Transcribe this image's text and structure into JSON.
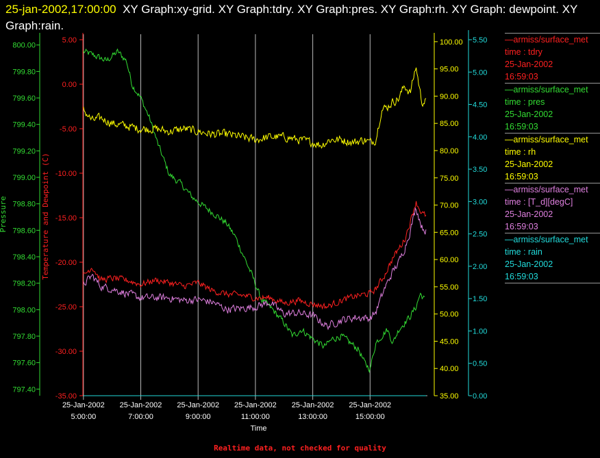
{
  "title": {
    "timestamp": "25-jan-2002,17:00:00",
    "text": "XY Graph:xy-grid.  XY Graph:tdry.  XY Graph:pres.  XY Graph:rh.  XY Graph: dewpoint.  XY Graph:rain."
  },
  "footer": "Realtime data, not checked for quality",
  "colors": {
    "tdry": "#ff2020",
    "pres": "#33dd33",
    "rh": "#ffff00",
    "dewpoint": "#e080e0",
    "rain": "#22dddd",
    "grid": "#bbbbbb"
  },
  "legend": [
    {
      "source": "—armiss/surface_met",
      "label": "time : tdry",
      "date": "25-Jan-2002",
      "time": "16:59:03",
      "color": "#ff2020"
    },
    {
      "source": "—armiss/surface_met",
      "label": "time : pres",
      "date": "25-Jan-2002",
      "time": "16:59:03",
      "color": "#33dd33"
    },
    {
      "source": "—armiss/surface_met",
      "label": "time : rh",
      "date": "25-Jan-2002",
      "time": "16:59:03",
      "color": "#ffff00"
    },
    {
      "source": "—armiss/surface_met",
      "label": "time : [T_d][degC]",
      "date": "25-Jan-2002",
      "time": "16:59:03",
      "color": "#e080e0"
    },
    {
      "source": "—armiss/surface_met",
      "label": "time : rain",
      "date": "25-Jan-2002",
      "time": "16:59:03",
      "color": "#22dddd"
    }
  ],
  "chart_data": {
    "type": "line",
    "title": "",
    "xlabel": "Time",
    "grid": true,
    "legend_placement": "right",
    "x_ticks": [
      {
        "date": "25-Jan-2002",
        "time": "5:00:00",
        "hour": 5
      },
      {
        "date": "25-Jan-2002",
        "time": "7:00:00",
        "hour": 7
      },
      {
        "date": "25-Jan-2002",
        "time": "9:00:00",
        "hour": 9
      },
      {
        "date": "25-Jan-2002",
        "time": "11:00:00",
        "hour": 11
      },
      {
        "date": "25-Jan-2002",
        "time": "13:00:00",
        "hour": 13
      },
      {
        "date": "25-Jan-2002",
        "time": "15:00:00",
        "hour": 15
      }
    ],
    "xlim": [
      4.98,
      17.0
    ],
    "axes": {
      "temperature": {
        "label": "Temperature and Dewpoint (C)",
        "ylim": [
          -35,
          5
        ],
        "ticks": [
          "5.00",
          "0.00",
          "-5.00",
          "-10.00",
          "-15.00",
          "-20.00",
          "-25.00",
          "-30.00",
          "-35.00"
        ],
        "tick_values": [
          5,
          0,
          -5,
          -10,
          -15,
          -20,
          -25,
          -30,
          -35
        ],
        "color": "#ff2020"
      },
      "pressure": {
        "label": "Pressure",
        "ylim": [
          797.35,
          800.04
        ],
        "ticks": [
          "800.00",
          "799.80",
          "799.60",
          "799.40",
          "799.20",
          "799.00",
          "798.80",
          "798.60",
          "798.40",
          "798.20",
          "798.00",
          "797.80",
          "797.60",
          "797.40"
        ],
        "tick_values": [
          800,
          799.8,
          799.6,
          799.4,
          799.2,
          799,
          798.8,
          798.6,
          798.4,
          798.2,
          798,
          797.8,
          797.6,
          797.4
        ],
        "color": "#33dd33"
      },
      "rh": {
        "label": "",
        "ylim": [
          35,
          100.36
        ],
        "ticks": [
          "100.00",
          "95.00",
          "90.00",
          "85.00",
          "80.00",
          "75.00",
          "70.00",
          "65.00",
          "60.00",
          "55.00",
          "50.00",
          "45.00",
          "40.00",
          "35.00"
        ],
        "tick_values": [
          100,
          95,
          90,
          85,
          80,
          75,
          70,
          65,
          60,
          55,
          50,
          45,
          40,
          35
        ],
        "color": "#ffff00"
      },
      "rain": {
        "label": "",
        "ylim": [
          0,
          5.5
        ],
        "ticks": [
          "5.50",
          "5.00",
          "4.50",
          "4.00",
          "3.50",
          "3.00",
          "2.50",
          "2.00",
          "1.50",
          "1.00",
          "0.50",
          "0.00"
        ],
        "tick_values": [
          5.5,
          5,
          4.5,
          4,
          3.5,
          3,
          2.5,
          2,
          1.5,
          1,
          0.5,
          0
        ],
        "color": "#22dddd"
      }
    },
    "series": [
      {
        "key": "tdry",
        "axis": "temperature",
        "color": "#ff2020",
        "noise": 0.5,
        "x": [
          5.0,
          5.3,
          5.6,
          6.0,
          6.5,
          7.0,
          7.5,
          8.0,
          8.5,
          9.0,
          9.5,
          10.0,
          10.5,
          11.0,
          11.5,
          12.0,
          12.5,
          13.0,
          13.5,
          14.0,
          14.5,
          15.0,
          15.2,
          15.5,
          15.8,
          16.0,
          16.2,
          16.4,
          16.6,
          16.8,
          16.95
        ],
        "y": [
          -21.5,
          -20.5,
          -22,
          -21.8,
          -22,
          -22.5,
          -22,
          -22.3,
          -22.7,
          -22.3,
          -23.2,
          -23.6,
          -23.7,
          -24,
          -24,
          -24.6,
          -24.3,
          -24.7,
          -25,
          -24.3,
          -23.8,
          -23.5,
          -23,
          -21.5,
          -19.5,
          -18.5,
          -17.5,
          -15.5,
          -13.2,
          -14.5,
          -14.8
        ]
      },
      {
        "key": "dewpoint",
        "axis": "temperature",
        "color": "#e080e0",
        "noise": 0.6,
        "x": [
          5.0,
          5.3,
          5.6,
          6.0,
          6.5,
          7.0,
          7.5,
          8.0,
          8.5,
          9.0,
          9.5,
          10.0,
          10.5,
          11.0,
          11.5,
          12.0,
          12.5,
          13.0,
          13.5,
          14.0,
          14.5,
          15.0,
          15.2,
          15.5,
          15.8,
          16.0,
          16.2,
          16.4,
          16.6,
          16.8,
          16.95
        ],
        "y": [
          -22.5,
          -21.5,
          -22.7,
          -23,
          -23.5,
          -24,
          -24,
          -24,
          -24.3,
          -24.2,
          -24.5,
          -25.3,
          -25.2,
          -25,
          -24.5,
          -25.8,
          -25.7,
          -26,
          -27.2,
          -26.5,
          -26.2,
          -26.3,
          -25.6,
          -23,
          -21,
          -20,
          -18.5,
          -16.5,
          -13.8,
          -16,
          -16.5
        ]
      },
      {
        "key": "pres",
        "axis": "pressure",
        "color": "#33dd33",
        "noise": 0.035,
        "x": [
          5.0,
          5.4,
          5.8,
          6.2,
          6.5,
          6.7,
          7.0,
          7.3,
          7.6,
          8.0,
          8.4,
          8.8,
          9.2,
          9.6,
          10.0,
          10.3,
          10.6,
          10.9,
          11.2,
          11.6,
          12.0,
          12.3,
          12.6,
          13.0,
          13.4,
          13.7,
          14.0,
          14.3,
          14.6,
          14.8,
          15.0,
          15.2,
          15.6,
          15.8,
          16.0,
          16.4,
          16.6,
          16.75,
          16.9
        ],
        "y": [
          799.95,
          799.92,
          799.88,
          799.95,
          799.88,
          799.7,
          799.6,
          799.45,
          799.25,
          799.02,
          798.95,
          798.85,
          798.78,
          798.72,
          798.65,
          798.55,
          798.4,
          798.25,
          798.08,
          798.0,
          797.9,
          797.8,
          797.85,
          797.78,
          797.72,
          797.78,
          797.8,
          797.75,
          797.7,
          797.6,
          797.55,
          797.75,
          797.85,
          797.75,
          797.85,
          797.95,
          798.02,
          798.12,
          798.08
        ]
      },
      {
        "key": "rh",
        "axis": "rh",
        "color": "#ffff00",
        "noise": 1.1,
        "x": [
          5.0,
          5.3,
          5.6,
          6.0,
          6.5,
          7.0,
          7.5,
          8.0,
          8.5,
          9.0,
          9.5,
          10.0,
          10.5,
          11.0,
          11.5,
          12.0,
          12.5,
          13.0,
          13.3,
          13.6,
          14.0,
          14.4,
          14.8,
          15.0,
          15.2,
          15.4,
          15.6,
          15.8,
          16.0,
          16.2,
          16.4,
          16.6,
          16.8,
          16.95
        ],
        "y": [
          87.5,
          85.5,
          86,
          85,
          84.5,
          84,
          84,
          83.5,
          84,
          83.5,
          83,
          83,
          82.5,
          82,
          82.5,
          82.5,
          82,
          81.5,
          81,
          82,
          82,
          81.5,
          82,
          81.5,
          82,
          87.5,
          88,
          89,
          89.5,
          92,
          90.5,
          95.5,
          89,
          89
        ]
      },
      {
        "key": "rain",
        "axis": "rain",
        "color": "#22dddd",
        "noise": 0,
        "x": [
          5.0,
          16.95
        ],
        "y": [
          0.0,
          0.0
        ]
      }
    ]
  }
}
